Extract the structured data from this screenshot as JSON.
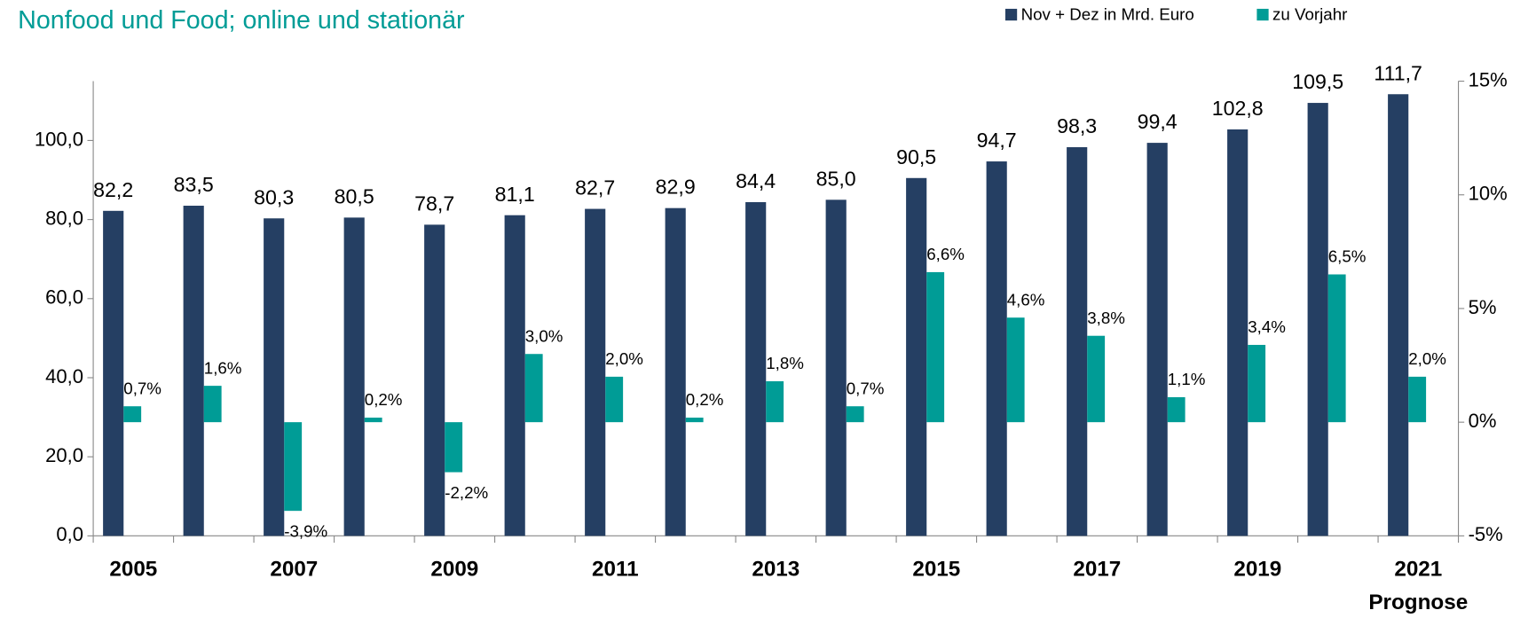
{
  "chart_data": {
    "type": "bar",
    "title": "Nonfood und Food; online und stationär",
    "annotation": "Prognose",
    "categories": [
      "2005",
      null,
      "2007",
      null,
      "2009",
      null,
      "2011",
      null,
      "2013",
      null,
      "2015",
      null,
      "2017",
      null,
      "2019",
      null,
      "2021"
    ],
    "series": [
      {
        "name": "Nov + Dez in Mrd. Euro",
        "color": "#253f63",
        "values": [
          82.2,
          83.5,
          80.3,
          80.5,
          78.7,
          81.1,
          82.7,
          82.9,
          84.4,
          85.0,
          90.5,
          94.7,
          98.3,
          99.4,
          102.8,
          109.5,
          111.7
        ],
        "value_labels": [
          "82,2",
          "83,5",
          "80,3",
          "80,5",
          "78,7",
          "81,1",
          "82,7",
          "82,9",
          "84,4",
          "85,0",
          "90,5",
          "94,7",
          "98,3",
          "99,4",
          "102,8",
          "109,5",
          "111,7"
        ]
      },
      {
        "name": "zu Vorjahr",
        "color": "#009c96",
        "axis": "y2",
        "values": [
          0.7,
          1.6,
          -3.9,
          0.2,
          -2.2,
          3.0,
          2.0,
          0.2,
          1.8,
          0.7,
          6.6,
          4.6,
          3.8,
          1.1,
          3.4,
          6.5,
          2.0
        ],
        "value_labels": [
          "0,7%",
          "1,6%",
          "-3,9%",
          "0,2%",
          "-2,2%",
          "3,0%",
          "2,0%",
          "0,2%",
          "1,8%",
          "0,7%",
          "6,6%",
          "4,6%",
          "3,8%",
          "1,1%",
          "3,4%",
          "6,5%",
          "2,0%"
        ]
      }
    ],
    "ylim": [
      0,
      115
    ],
    "yticks": [
      {
        "value": 0,
        "label": "0,0"
      },
      {
        "value": 20,
        "label": "20,0"
      },
      {
        "value": 40,
        "label": "40,0"
      },
      {
        "value": 60,
        "label": "60,0"
      },
      {
        "value": 80,
        "label": "80,0"
      },
      {
        "value": 100,
        "label": "100,0"
      }
    ],
    "y2lim": [
      -5,
      15
    ],
    "y2ticks": [
      {
        "value": -5,
        "label": "-5%"
      },
      {
        "value": 0,
        "label": "0%"
      },
      {
        "value": 5,
        "label": "5%"
      },
      {
        "value": 10,
        "label": "10%"
      },
      {
        "value": 15,
        "label": "15%"
      }
    ],
    "grid": false,
    "legend": "top-right"
  }
}
